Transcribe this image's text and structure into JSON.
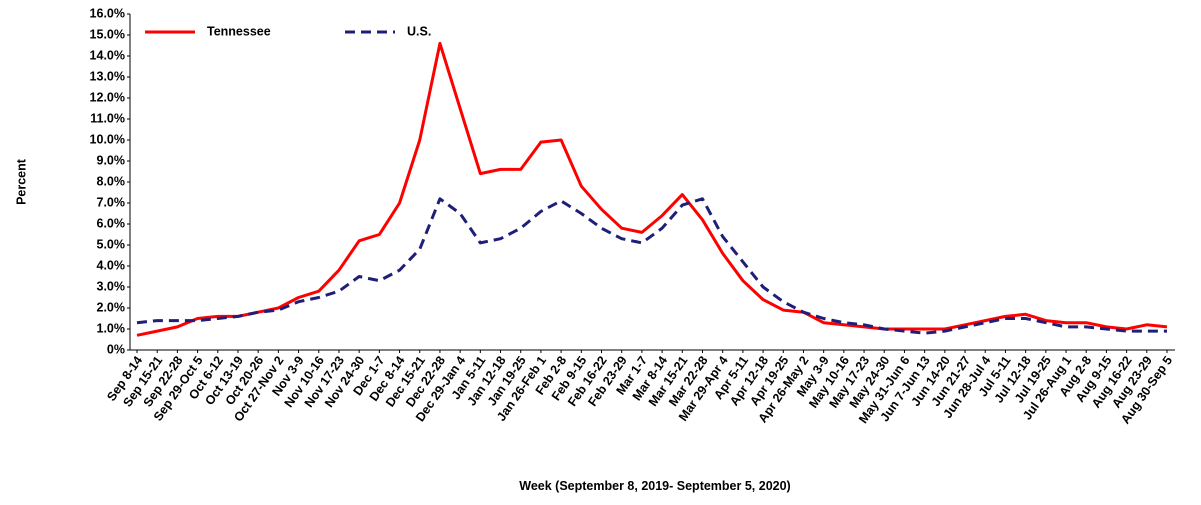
{
  "chart_data": {
    "type": "line",
    "x_label": "Week (September 8, 2019- September 5, 2020)",
    "y_label": "Percent",
    "categories": [
      "Sep 8-14",
      "Sep 15-21",
      "Sep 22-28",
      "Sep 29-Oct 5",
      "Oct 6-12",
      "Oct 13-19",
      "Oct 20-26",
      "Oct 27-Nov 2",
      "Nov 3-9",
      "Nov 10-16",
      "Nov 17-23",
      "Nov 24-30",
      "Dec 1-7",
      "Dec 8-14",
      "Dec 15-21",
      "Dec 22-28",
      "Dec 29-Jan 4",
      "Jan 5-11",
      "Jan 12-18",
      "Jan 19-25",
      "Jan 26-Feb 1",
      "Feb 2-8",
      "Feb 9-15",
      "Feb 16-22",
      "Feb 23-29",
      "Mar 1-7",
      "Mar 8-14",
      "Mar 15-21",
      "Mar 22-28",
      "Mar 29-Apr 4",
      "Apr 5-11",
      "Apr 12-18",
      "Apr 19-25",
      "Apr 26-May 2",
      "May 3-9",
      "May 10-16",
      "May 17-23",
      "May 24-30",
      "May 31-Jun 6",
      "Jun 7-Jun 13",
      "Jun 14-20",
      "Jun 21-27",
      "Jun 28-Jul 4",
      "Jul 5-11",
      "Jul 12-18",
      "Jul 19-25",
      "Jul 26-Aug 1",
      "Aug 2-8",
      "Aug 9-15",
      "Aug 16-22",
      "Aug 23-29",
      "Aug 30-Sep 5"
    ],
    "series": [
      {
        "name": "Tennessee",
        "color": "#ff0000",
        "line_style": "solid",
        "values": [
          0.7,
          0.9,
          1.1,
          1.5,
          1.6,
          1.6,
          1.8,
          2.0,
          2.5,
          2.8,
          3.8,
          5.2,
          5.5,
          7.0,
          10.0,
          14.6,
          11.5,
          8.4,
          8.6,
          8.6,
          9.9,
          10.0,
          7.8,
          6.7,
          5.8,
          5.6,
          6.4,
          7.4,
          6.2,
          4.6,
          3.3,
          2.4,
          1.9,
          1.8,
          1.3,
          1.2,
          1.1,
          1.0,
          1.0,
          1.0,
          1.0,
          1.2,
          1.4,
          1.6,
          1.7,
          1.4,
          1.3,
          1.3,
          1.1,
          1.0,
          1.2,
          1.1
        ]
      },
      {
        "name": "U.S.",
        "color": "#1f1f7a",
        "line_style": "dashed",
        "values": [
          1.3,
          1.4,
          1.4,
          1.4,
          1.5,
          1.6,
          1.8,
          1.9,
          2.3,
          2.5,
          2.8,
          3.5,
          3.3,
          3.8,
          4.8,
          7.2,
          6.5,
          5.1,
          5.3,
          5.8,
          6.6,
          7.1,
          6.5,
          5.8,
          5.3,
          5.1,
          5.8,
          6.9,
          7.2,
          5.4,
          4.2,
          3.0,
          2.3,
          1.8,
          1.5,
          1.3,
          1.2,
          1.0,
          0.9,
          0.8,
          0.9,
          1.1,
          1.3,
          1.5,
          1.5,
          1.3,
          1.1,
          1.1,
          1.0,
          0.9,
          0.9,
          0.9
        ]
      }
    ],
    "ylim": [
      0,
      16
    ],
    "yticks": [
      {
        "value": 0,
        "label": "0%"
      },
      {
        "value": 1,
        "label": "1.0%"
      },
      {
        "value": 2,
        "label": "2.0%"
      },
      {
        "value": 3,
        "label": "3.0%"
      },
      {
        "value": 4,
        "label": "4.0%"
      },
      {
        "value": 5,
        "label": "5.0%"
      },
      {
        "value": 6,
        "label": "6.0%"
      },
      {
        "value": 7,
        "label": "7.0%"
      },
      {
        "value": 8,
        "label": "8.0%"
      },
      {
        "value": 9,
        "label": "9.0%"
      },
      {
        "value": 10,
        "label": "10.0%"
      },
      {
        "value": 11,
        "label": "11.0%"
      },
      {
        "value": 12,
        "label": "12.0%"
      },
      {
        "value": 13,
        "label": "13.0%"
      },
      {
        "value": 14,
        "label": "14.0%"
      },
      {
        "value": 15,
        "label": "15.0%"
      },
      {
        "value": 16,
        "label": "16.0%"
      }
    ],
    "legend": "top-left"
  }
}
